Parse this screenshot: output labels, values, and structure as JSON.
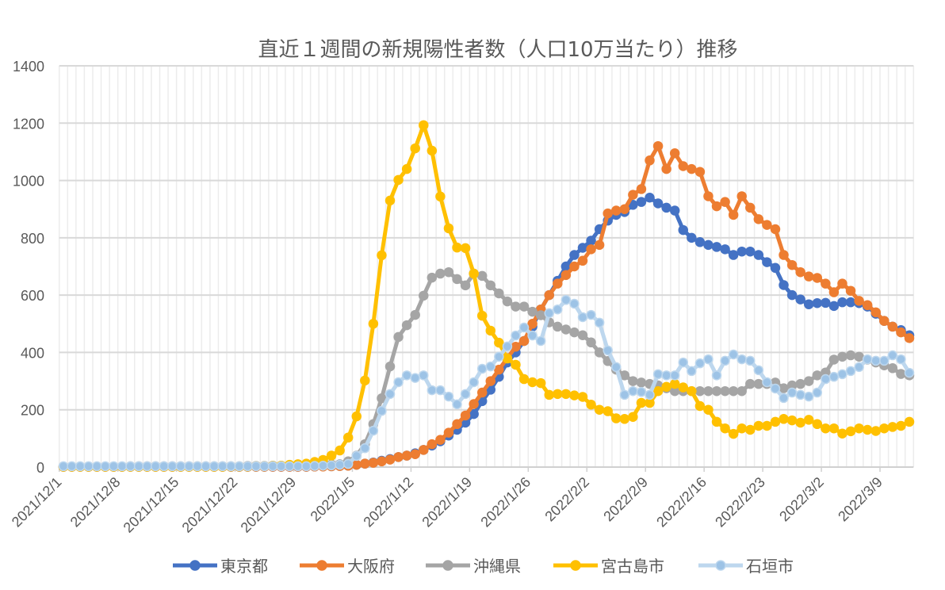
{
  "chart_data": {
    "type": "line",
    "title": "直近１週間の新規陽性者数（人口10万当たり）推移",
    "xlabel": "",
    "ylabel": "",
    "ylim": [
      0,
      1400
    ],
    "yticks": [
      0,
      200,
      400,
      600,
      800,
      1000,
      1200,
      1400
    ],
    "x_start": "2021/12/1",
    "x_labels": [
      "2021/12/1",
      "2021/12/8",
      "2021/12/15",
      "2021/12/22",
      "2021/12/29",
      "2022/1/5",
      "2022/1/12",
      "2022/1/19",
      "2022/1/26",
      "2022/2/2",
      "2022/2/9",
      "2022/2/16",
      "2022/2/23",
      "2022/3/2",
      "2022/3/9"
    ],
    "x_label_interval_days": 7,
    "grid": true,
    "legend": "bottom",
    "series": [
      {
        "name": "東京都",
        "color": "#4472C4",
        "marker_fill": "#4472C4",
        "values": [
          1,
          1,
          1,
          1,
          1,
          1,
          1,
          1,
          1,
          1,
          1,
          1,
          1,
          1,
          1,
          1,
          1,
          1,
          1,
          1,
          1,
          1,
          1,
          1,
          1,
          1,
          1,
          1,
          1,
          1,
          2,
          3,
          3,
          4,
          5,
          8,
          12,
          16,
          22,
          28,
          35,
          40,
          48,
          60,
          75,
          90,
          110,
          130,
          155,
          185,
          230,
          270,
          315,
          365,
          400,
          440,
          490,
          550,
          600,
          650,
          700,
          740,
          765,
          790,
          830,
          860,
          880,
          890,
          915,
          925,
          940,
          920,
          905,
          895,
          827,
          800,
          785,
          775,
          768,
          760,
          740,
          752,
          752,
          740,
          715,
          695,
          635,
          600,
          585,
          568,
          572,
          573,
          562,
          575,
          575,
          572,
          560,
          535,
          510,
          490,
          478,
          460
        ]
      },
      {
        "name": "大阪府",
        "color": "#ED7D31",
        "marker_fill": "#ED7D31",
        "values": [
          1,
          1,
          1,
          1,
          1,
          1,
          1,
          1,
          1,
          1,
          1,
          1,
          1,
          1,
          1,
          1,
          1,
          1,
          1,
          1,
          1,
          1,
          1,
          1,
          1,
          1,
          1,
          1,
          1,
          1,
          2,
          2,
          3,
          4,
          5,
          8,
          12,
          15,
          20,
          26,
          35,
          40,
          45,
          60,
          80,
          95,
          120,
          150,
          180,
          220,
          260,
          300,
          340,
          380,
          420,
          440,
          500,
          550,
          600,
          640,
          670,
          700,
          720,
          760,
          775,
          885,
          895,
          900,
          950,
          970,
          1070,
          1120,
          1040,
          1095,
          1050,
          1040,
          1030,
          945,
          910,
          925,
          880,
          945,
          905,
          865,
          845,
          830,
          740,
          705,
          680,
          665,
          660,
          640,
          610,
          640,
          615,
          580,
          565,
          540,
          510,
          490,
          470,
          450
        ]
      },
      {
        "name": "沖縄県",
        "color": "#A5A5A5",
        "marker_fill": "#A5A5A5",
        "values": [
          2,
          2,
          2,
          2,
          2,
          2,
          2,
          2,
          3,
          3,
          3,
          3,
          3,
          3,
          3,
          3,
          3,
          3,
          3,
          3,
          3,
          3,
          4,
          4,
          4,
          5,
          5,
          5,
          6,
          6,
          7,
          8,
          9,
          10,
          20,
          40,
          80,
          150,
          240,
          351,
          454,
          495,
          531,
          598,
          661,
          675,
          680,
          656,
          634,
          675,
          667,
          634,
          606,
          578,
          560,
          560,
          542,
          530,
          505,
          490,
          480,
          470,
          460,
          435,
          400,
          370,
          340,
          320,
          300,
          295,
          290,
          285,
          275,
          265,
          265,
          265,
          265,
          265,
          265,
          265,
          265,
          265,
          290,
          290,
          290,
          295,
          275,
          285,
          290,
          300,
          320,
          330,
          375,
          385,
          390,
          385,
          375,
          365,
          355,
          345,
          325,
          320
        ]
      },
      {
        "name": "宮古島市",
        "color": "#FFC000",
        "marker_fill": "#FFC000",
        "values": [
          1,
          1,
          1,
          1,
          1,
          1,
          1,
          1,
          1,
          1,
          1,
          1,
          1,
          1,
          1,
          1,
          1,
          1,
          1,
          1,
          2,
          2,
          2,
          3,
          3,
          4,
          5,
          8,
          10,
          12,
          18,
          25,
          40,
          58,
          103,
          177,
          302,
          500,
          739,
          930,
          1002,
          1040,
          1112,
          1193,
          1104,
          944,
          833,
          766,
          764,
          675,
          528,
          476,
          434,
          379,
          357,
          307,
          296,
          293,
          252,
          255,
          255,
          250,
          245,
          218,
          200,
          195,
          170,
          168,
          175,
          224,
          224,
          265,
          280,
          290,
          278,
          265,
          213,
          200,
          158,
          135,
          116,
          135,
          130,
          144,
          144,
          158,
          168,
          163,
          155,
          165,
          150,
          135,
          135,
          117,
          125,
          135,
          130,
          126,
          135,
          140,
          144,
          158
        ]
      },
      {
        "name": "石垣市",
        "color": "#BDD7EE",
        "marker_fill": "#9DC3E6",
        "values": [
          3,
          3,
          3,
          3,
          3,
          3,
          3,
          3,
          3,
          3,
          3,
          3,
          3,
          3,
          3,
          3,
          3,
          3,
          3,
          3,
          3,
          3,
          3,
          3,
          3,
          3,
          3,
          3,
          3,
          3,
          4,
          5,
          6,
          8,
          11,
          39,
          66,
          127,
          196,
          255,
          296,
          320,
          311,
          320,
          268,
          268,
          246,
          219,
          255,
          296,
          343,
          351,
          385,
          421,
          459,
          487,
          459,
          440,
          537,
          550,
          583,
          570,
          523,
          531,
          504,
          407,
          349,
          252,
          265,
          262,
          252,
          324,
          320,
          320,
          365,
          335,
          362,
          376,
          320,
          371,
          393,
          376,
          371,
          338,
          296,
          274,
          241,
          260,
          252,
          246,
          260,
          307,
          315,
          324,
          335,
          349,
          376,
          371,
          371,
          390,
          376,
          329
        ]
      }
    ]
  }
}
